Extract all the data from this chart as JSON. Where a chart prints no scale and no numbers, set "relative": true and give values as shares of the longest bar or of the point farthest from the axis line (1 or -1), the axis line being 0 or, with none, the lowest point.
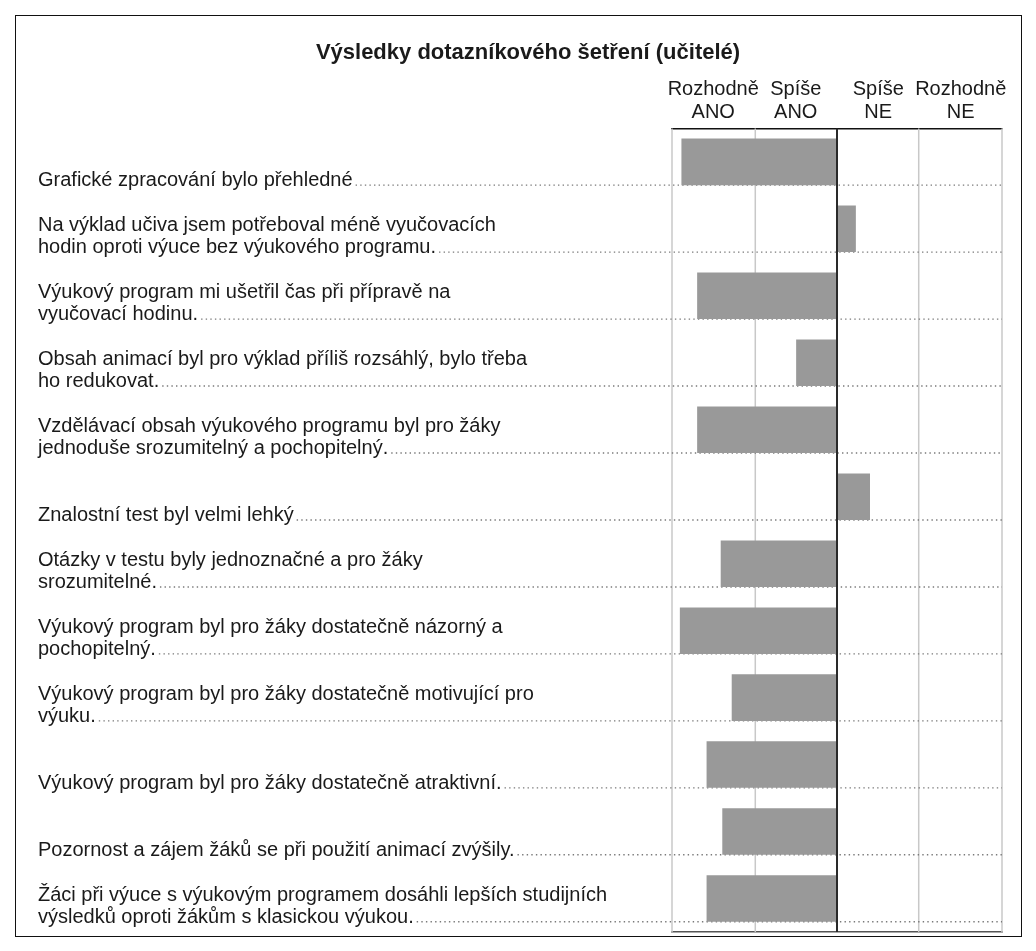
{
  "chart_data": {
    "type": "bar",
    "orientation": "horizontal",
    "relative": true,
    "title": "Výsledky dotazníkového šetření (učitelé)",
    "categories": [
      "Grafické zpracování bylo přehledné",
      "Na výklad učiva jsem potřeboval méně vyučovacích\nhodin oproti výuce bez výukového programu.",
      "Výukový program mi ušetřil čas při přípravě na\nvyučovací hodinu.",
      "Obsah animací byl pro výklad příliš rozsáhlý, bylo třeba\nho redukovat.",
      "Vzdělávací obsah výukového programu byl pro žáky\njednoduše srozumitelný a pochopitelný.",
      "Znalostní test byl velmi lehký",
      "Otázky v testu byly jednoznačné a pro žáky\nsrozumitelné.",
      "Výukový program byl pro žáky dostatečně názorný a\npochopitelný.",
      "Výukový program byl pro žáky dostatečně motivující pro\nvýuku.",
      "Výukový program byl pro žáky dostatečně atraktivní.",
      "Pozornost a zájem žáků se při použití animací zvýšily.",
      "Žáci při výuce s výukovým programem dosáhli lepších studijních\nvýsledků oproti žákům s klasickou výukou."
    ],
    "values": [
      -0.99,
      0.12,
      -0.89,
      -0.26,
      -0.89,
      0.21,
      -0.74,
      -1,
      -0.67,
      -0.83,
      -0.73,
      -0.83
    ],
    "color": "#999999",
    "ref_lines": [
      {
        "axis": "x",
        "value": -1.05,
        "color": "#c8c8c8"
      },
      {
        "axis": "x",
        "value": -0.52,
        "color": "#c8c8c8"
      },
      {
        "axis": "x",
        "value": 0.52,
        "color": "#c8c8c8"
      },
      {
        "axis": "x",
        "value": 1.05,
        "color": "#c8c8c8"
      }
    ],
    "annotations": [
      "Rozhodně\nANO",
      "Spíše\nANO",
      "Spíše\nNE",
      "Rozhodně\nNE"
    ],
    "grid": "y"
  }
}
